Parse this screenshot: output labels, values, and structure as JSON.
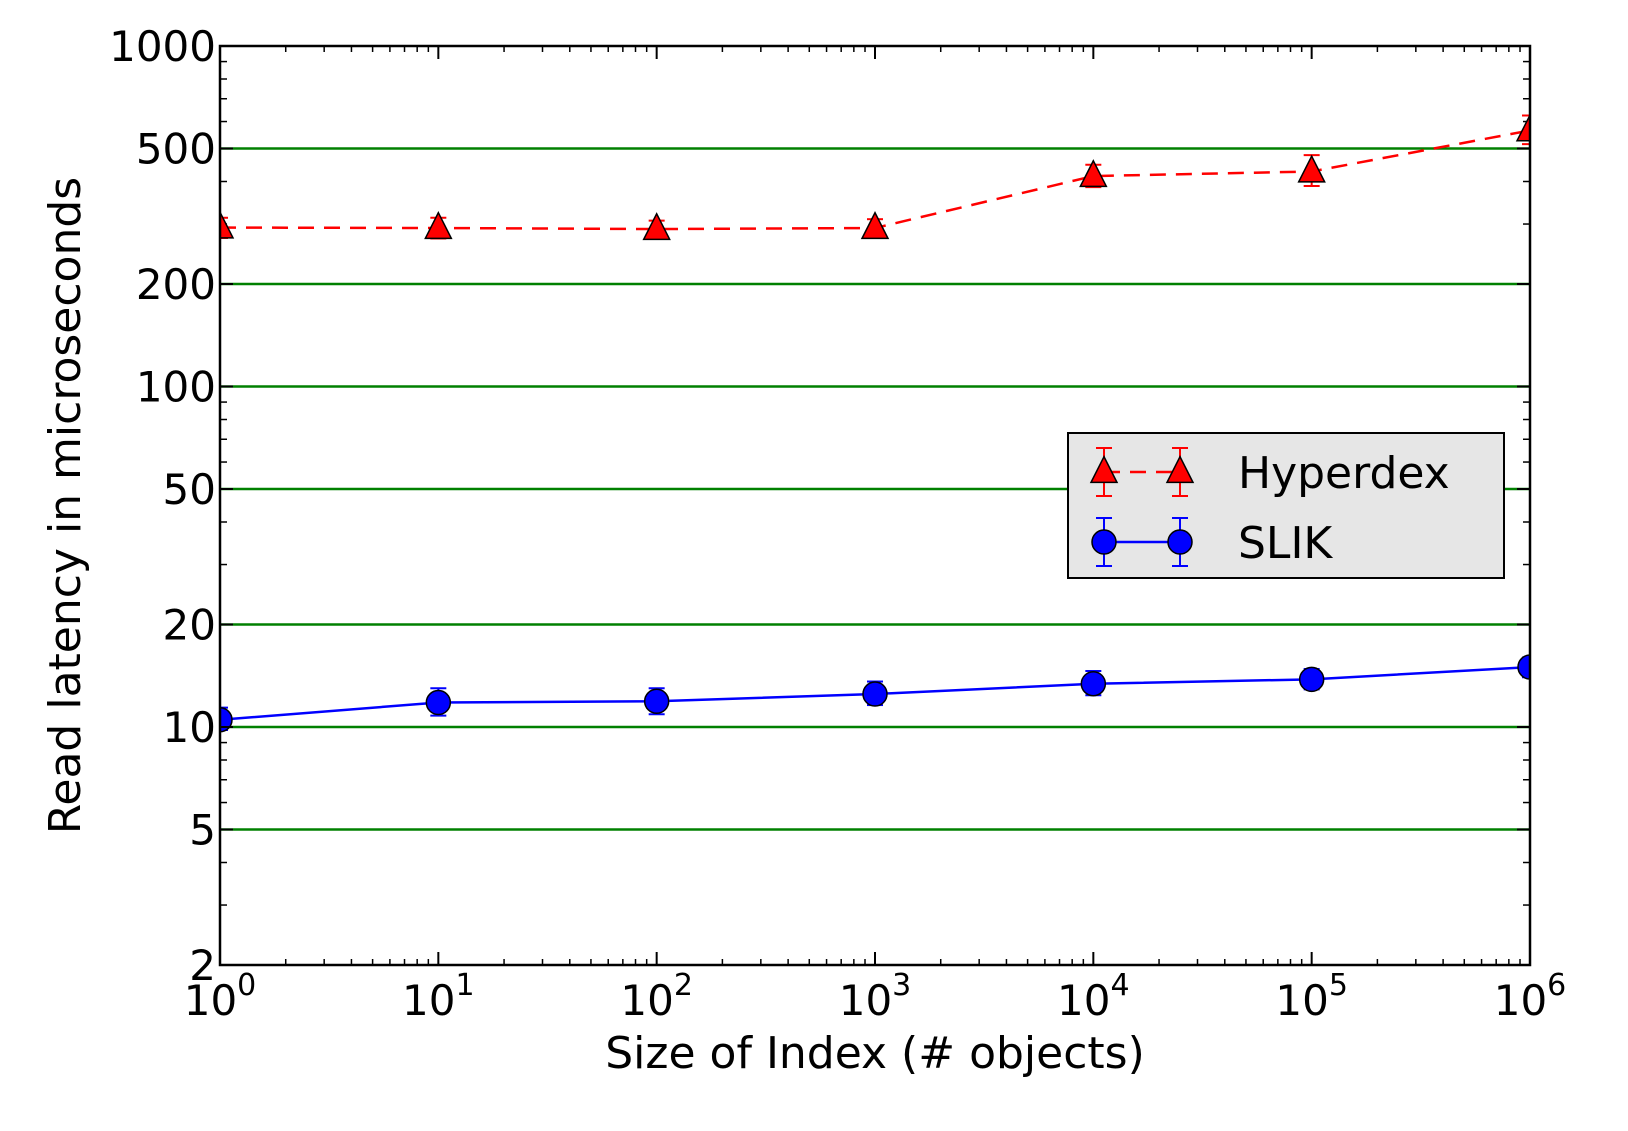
{
  "chart_data": {
    "type": "line",
    "xlabel": "Size of Index (# objects)",
    "ylabel": "Read latency in microseconds",
    "x_scale": "log",
    "y_scale": "log",
    "xlim": [
      1,
      1000000
    ],
    "ylim": [
      2,
      1000
    ],
    "x_ticks": [
      {
        "value": 1,
        "base": "10",
        "exp": "0"
      },
      {
        "value": 10,
        "base": "10",
        "exp": "1"
      },
      {
        "value": 100,
        "base": "10",
        "exp": "2"
      },
      {
        "value": 1000,
        "base": "10",
        "exp": "3"
      },
      {
        "value": 10000,
        "base": "10",
        "exp": "4"
      },
      {
        "value": 100000,
        "base": "10",
        "exp": "5"
      },
      {
        "value": 1000000,
        "base": "10",
        "exp": "6"
      }
    ],
    "y_ticks": [
      {
        "value": 2,
        "label": "2"
      },
      {
        "value": 5,
        "label": "5"
      },
      {
        "value": 10,
        "label": "10"
      },
      {
        "value": 20,
        "label": "20"
      },
      {
        "value": 50,
        "label": "50"
      },
      {
        "value": 100,
        "label": "100"
      },
      {
        "value": 200,
        "label": "200"
      },
      {
        "value": 500,
        "label": "500"
      },
      {
        "value": 1000,
        "label": "1000"
      }
    ],
    "gridlines_y": [
      5,
      10,
      20,
      50,
      100,
      200,
      500
    ],
    "grid": true,
    "grid_color": "#008000",
    "legend_position": "center-right",
    "x": [
      1,
      10,
      100,
      1000,
      10000,
      100000,
      1000000
    ],
    "series": [
      {
        "name": "Hyperdex",
        "color": "#ff0000",
        "marker": "triangle",
        "line": "dashed",
        "values": [
          293,
          292,
          290,
          292,
          415,
          428,
          565
        ],
        "err_low": [
          273,
          272,
          273,
          273,
          385,
          388,
          515
        ],
        "err_high": [
          313,
          313,
          307,
          310,
          448,
          478,
          625
        ]
      },
      {
        "name": "SLIK",
        "color": "#0000ff",
        "marker": "circle",
        "line": "solid",
        "values": [
          10.5,
          11.8,
          11.9,
          12.5,
          13.4,
          13.8,
          15.0
        ],
        "err_low": [
          9.8,
          10.8,
          10.9,
          11.6,
          12.4,
          12.9,
          14.0
        ],
        "err_high": [
          11.4,
          13.0,
          13.0,
          13.6,
          14.6,
          14.8,
          16.0
        ]
      }
    ]
  }
}
